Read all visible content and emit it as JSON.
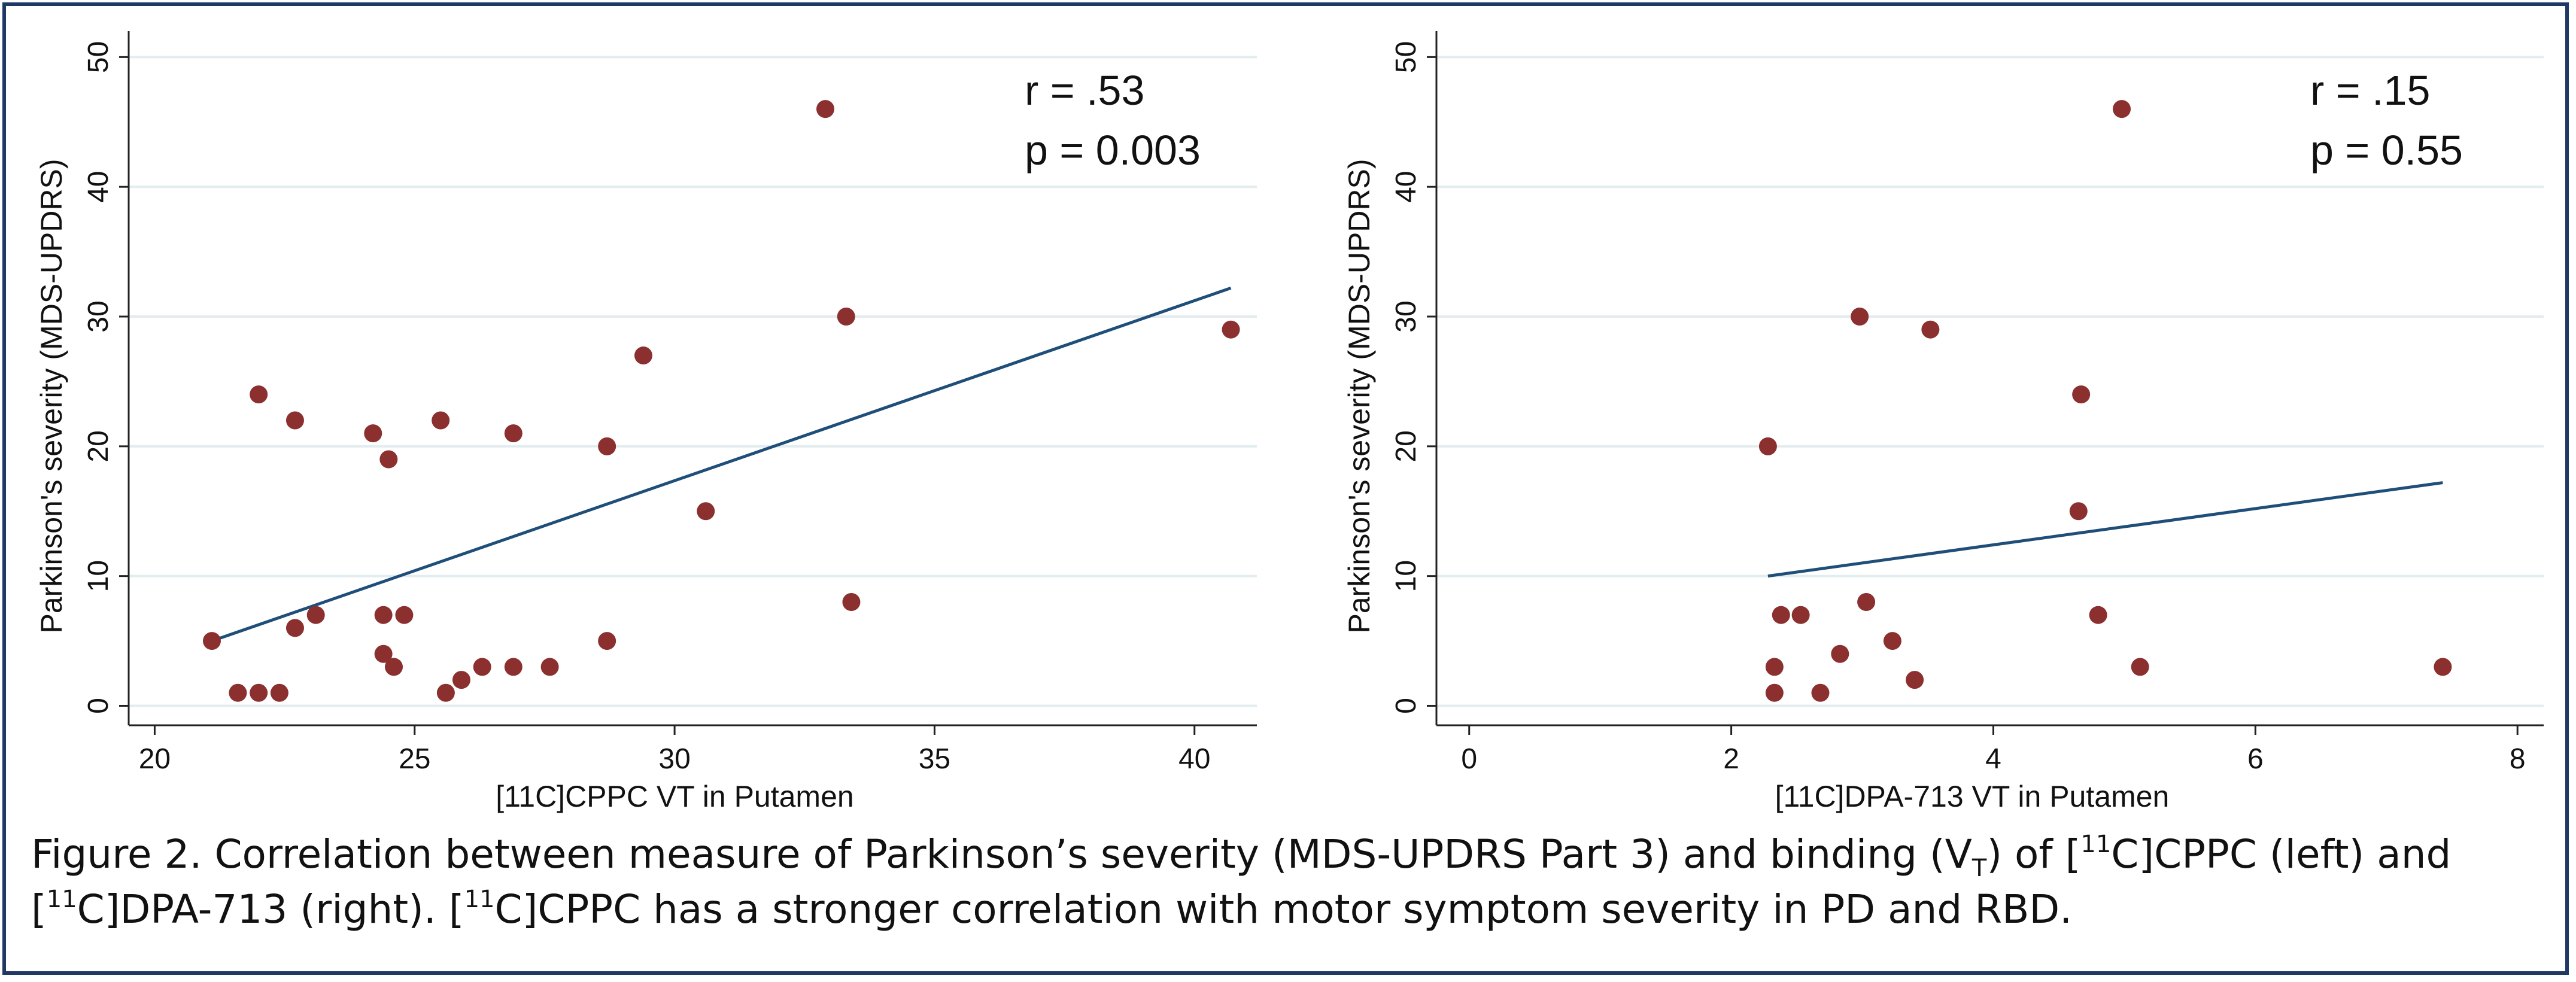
{
  "chart_data": [
    {
      "type": "scatter",
      "xlabel": "[11C]CPPC VT in Putamen",
      "ylabel": "Parkinson's severity (MDS-UPDRS)",
      "xlim": [
        19.5,
        41.2
      ],
      "ylim": [
        -1.5,
        52
      ],
      "xticks": [
        20,
        25,
        30,
        35,
        40
      ],
      "yticks": [
        0,
        10,
        20,
        30,
        40,
        50
      ],
      "grid": true,
      "annotation": {
        "r": "r = .53",
        "p": "p = 0.003"
      },
      "points": [
        {
          "x": 21.1,
          "y": 5
        },
        {
          "x": 21.6,
          "y": 1
        },
        {
          "x": 22.0,
          "y": 1
        },
        {
          "x": 22.4,
          "y": 1
        },
        {
          "x": 22.0,
          "y": 24
        },
        {
          "x": 22.7,
          "y": 22
        },
        {
          "x": 22.7,
          "y": 6
        },
        {
          "x": 23.1,
          "y": 7
        },
        {
          "x": 24.2,
          "y": 21
        },
        {
          "x": 24.5,
          "y": 19
        },
        {
          "x": 24.4,
          "y": 7
        },
        {
          "x": 24.4,
          "y": 4
        },
        {
          "x": 24.6,
          "y": 3
        },
        {
          "x": 24.8,
          "y": 7
        },
        {
          "x": 25.5,
          "y": 22
        },
        {
          "x": 25.6,
          "y": 1
        },
        {
          "x": 25.9,
          "y": 2
        },
        {
          "x": 26.3,
          "y": 3
        },
        {
          "x": 26.9,
          "y": 21
        },
        {
          "x": 26.9,
          "y": 3
        },
        {
          "x": 27.6,
          "y": 3
        },
        {
          "x": 28.7,
          "y": 20
        },
        {
          "x": 28.7,
          "y": 5
        },
        {
          "x": 29.4,
          "y": 27
        },
        {
          "x": 30.6,
          "y": 15
        },
        {
          "x": 32.9,
          "y": 46
        },
        {
          "x": 33.3,
          "y": 30
        },
        {
          "x": 33.4,
          "y": 8
        },
        {
          "x": 40.7,
          "y": 29
        }
      ],
      "fit_line": {
        "x": [
          21.1,
          40.7
        ],
        "y": [
          5.0,
          32.2
        ]
      }
    },
    {
      "type": "scatter",
      "xlabel": "[11C]DPA-713 VT in Putamen",
      "ylabel": "Parkinson's severity (MDS-UPDRS)",
      "xlim": [
        -0.25,
        8.2
      ],
      "ylim": [
        -1.5,
        52
      ],
      "xticks": [
        0,
        2,
        4,
        6,
        8
      ],
      "yticks": [
        0,
        10,
        20,
        30,
        40,
        50
      ],
      "grid": true,
      "annotation": {
        "r": "r = .15",
        "p": "p = 0.55"
      },
      "points": [
        {
          "x": 2.28,
          "y": 20
        },
        {
          "x": 2.33,
          "y": 3
        },
        {
          "x": 2.33,
          "y": 1
        },
        {
          "x": 2.38,
          "y": 7
        },
        {
          "x": 2.53,
          "y": 7
        },
        {
          "x": 2.68,
          "y": 1
        },
        {
          "x": 2.83,
          "y": 4
        },
        {
          "x": 2.98,
          "y": 30
        },
        {
          "x": 3.03,
          "y": 8
        },
        {
          "x": 3.23,
          "y": 5
        },
        {
          "x": 3.4,
          "y": 2
        },
        {
          "x": 3.52,
          "y": 29
        },
        {
          "x": 4.65,
          "y": 15
        },
        {
          "x": 4.67,
          "y": 24
        },
        {
          "x": 4.8,
          "y": 7
        },
        {
          "x": 4.98,
          "y": 46
        },
        {
          "x": 5.12,
          "y": 3
        },
        {
          "x": 7.43,
          "y": 3
        }
      ],
      "fit_line": {
        "x": [
          2.28,
          7.43
        ],
        "y": [
          10.0,
          17.2
        ]
      }
    }
  ],
  "caption": {
    "l1_a": "Figure 2. Correlation between measure of Parkinson’s severity (MDS-UPDRS Part 3) and binding (V",
    "l1_sub": "T",
    "l1_b": ") of [",
    "l1_sup": "11",
    "l1_c": "C]CPPC (left) and",
    "l2_a": "[",
    "l2_sup1": "11",
    "l2_b": "C]DPA-713 (right). [",
    "l2_sup2": "11",
    "l2_c": "C]CPPC has a stronger correlation with motor symptom severity in PD and RBD."
  },
  "colors": {
    "point": "#8b2f2f",
    "fit": "#1f4e79",
    "grid": "#e3ecef",
    "axis": "#222222",
    "frame": "#1f3864"
  }
}
